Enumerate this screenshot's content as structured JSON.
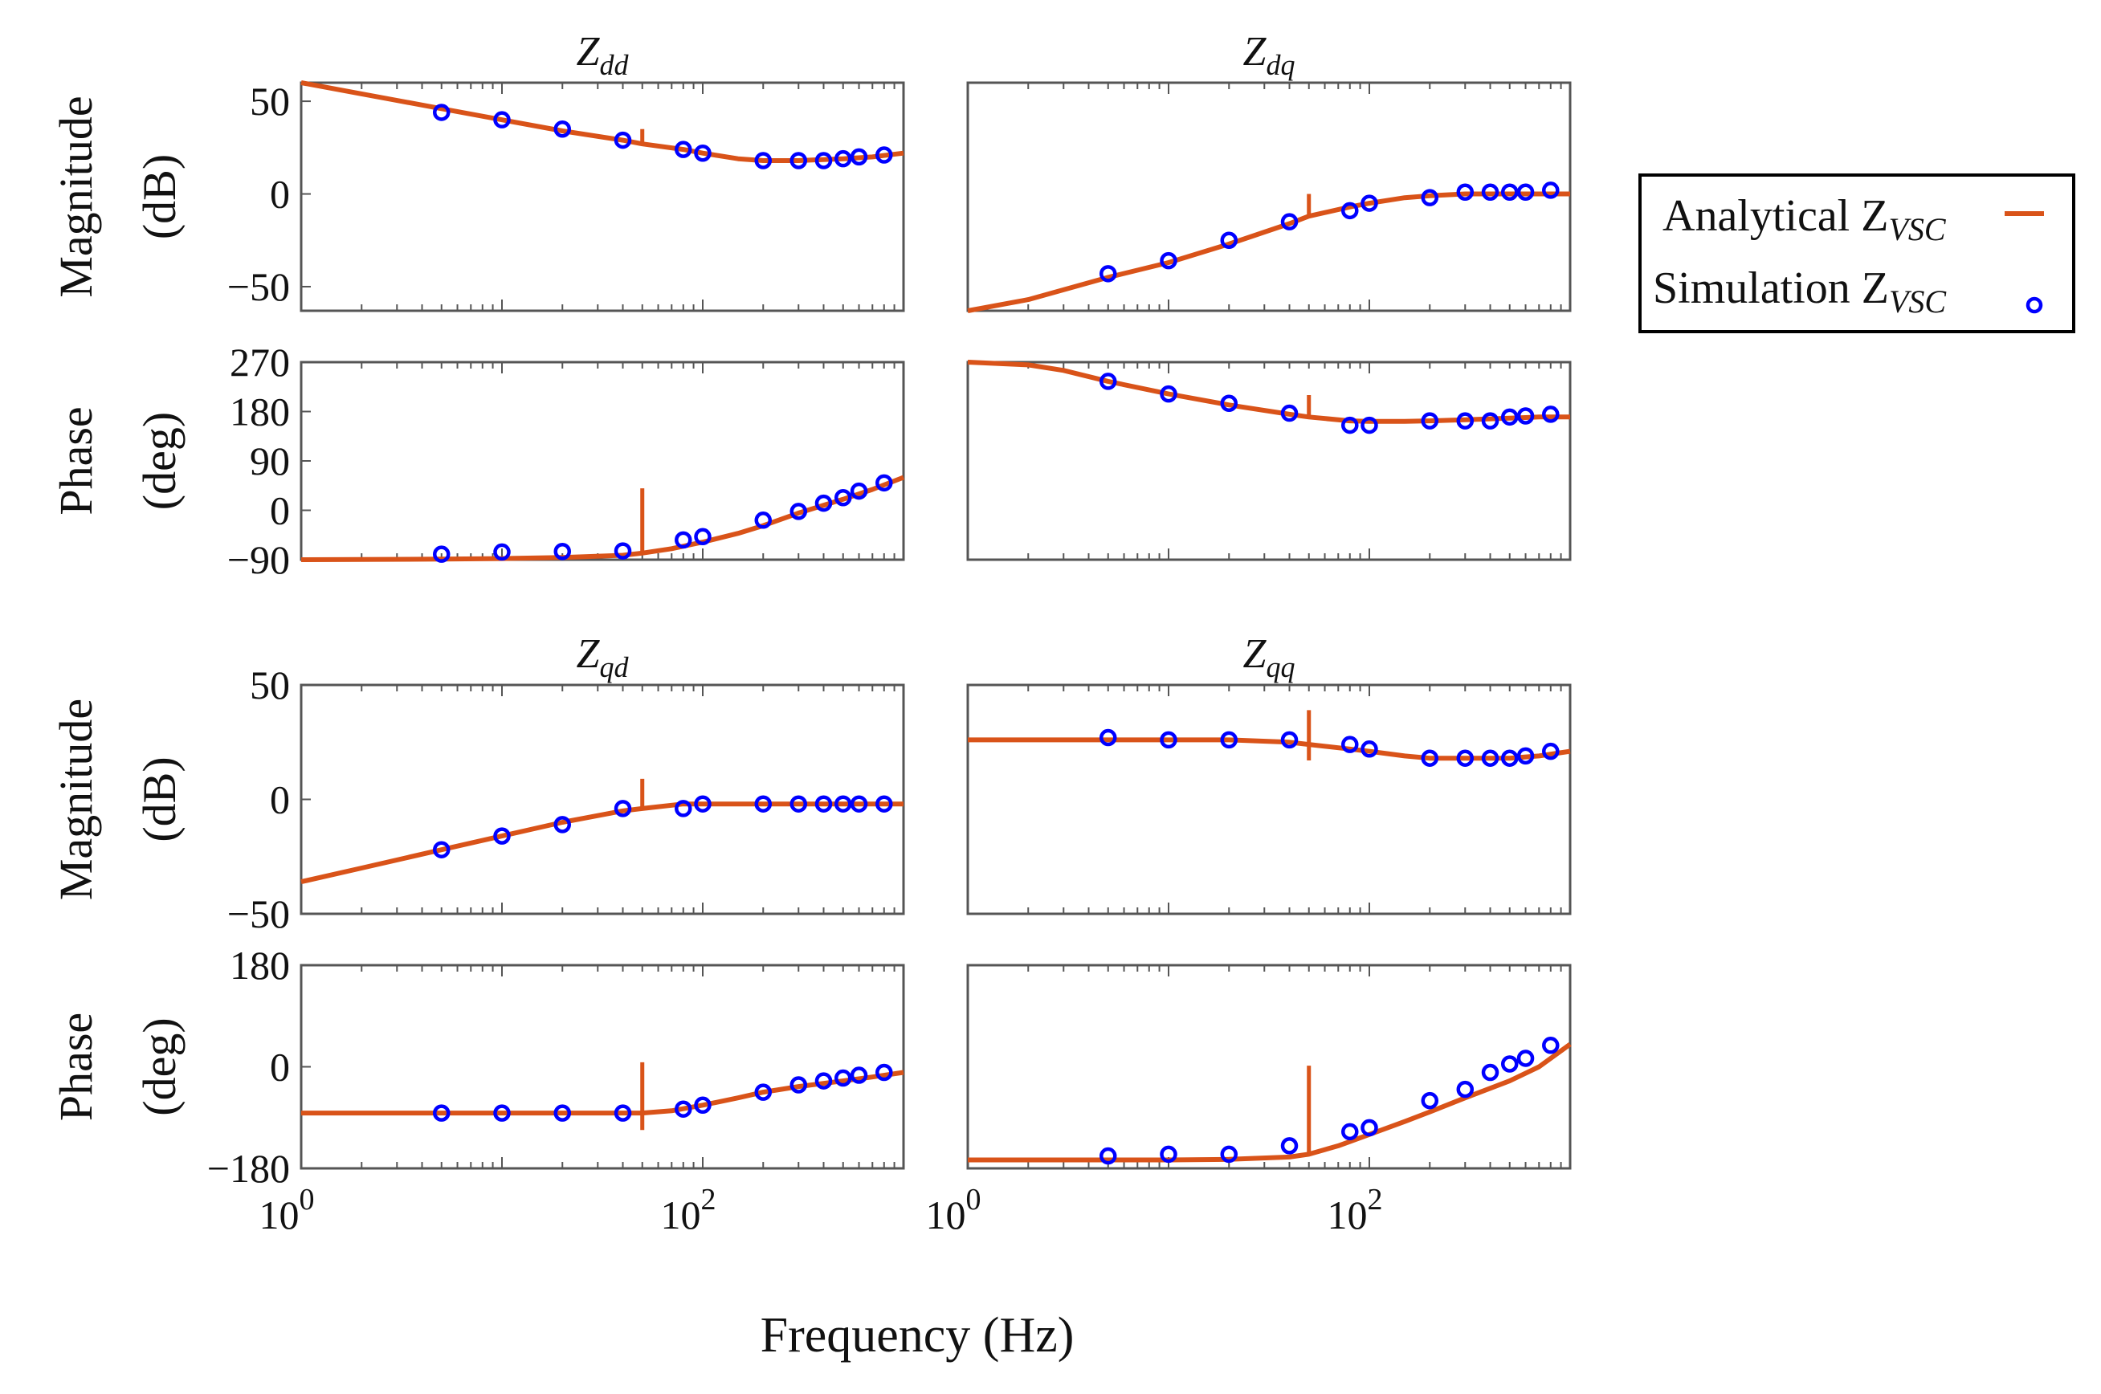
{
  "chart_data": {
    "type": "line",
    "layout": "4x2 bode grid",
    "xscale": "log",
    "xlim": [
      1,
      1000
    ],
    "xlabel": "Frequency  (Hz)",
    "colors": {
      "analytical": "#d95319",
      "simulation": "#0000ff",
      "frame": "#555555"
    },
    "legend": {
      "position": "right",
      "entries": [
        {
          "name": "Analytical Z",
          "sub": "VSC",
          "style": "line"
        },
        {
          "name": "Simulation Z",
          "sub": "VSC",
          "style": "marker"
        }
      ]
    },
    "row_labels": [
      {
        "line1": "Magnitude",
        "line2": "(dB)"
      },
      {
        "line1": "Phase",
        "line2": "(deg)"
      }
    ],
    "sim_freqs": [
      5,
      10,
      20,
      40,
      80,
      100,
      200,
      300,
      400,
      500,
      600,
      800
    ],
    "panels": [
      {
        "id": "zdd-mag",
        "group": "top",
        "col": 0,
        "kind": "magnitude",
        "title": "Z",
        "title_sub": "dd",
        "ylim": [
          -63,
          60
        ],
        "yticks": [
          {
            "v": 50,
            "label": "50"
          },
          {
            "v": 0,
            "label": "0"
          },
          {
            "v": -50,
            "label": "−50"
          }
        ],
        "analytical": {
          "x": [
            1,
            2,
            5,
            10,
            20,
            40,
            50,
            80,
            100,
            150,
            200,
            300,
            500,
            700,
            1000
          ],
          "y": [
            60,
            54,
            46,
            40,
            34,
            29,
            27,
            24,
            22,
            19,
            18,
            18,
            19,
            20,
            22
          ]
        },
        "spike": {
          "x": 50,
          "y1": 27,
          "y2": 35
        },
        "simulation": [
          44,
          40,
          35,
          29,
          24,
          22,
          18,
          18,
          18,
          19,
          20,
          21
        ]
      },
      {
        "id": "zdd-phase",
        "group": "top",
        "col": 0,
        "kind": "phase",
        "ylim": [
          -90,
          270
        ],
        "yticks": [
          {
            "v": 270,
            "label": "270"
          },
          {
            "v": 180,
            "label": "180"
          },
          {
            "v": 90,
            "label": "90"
          },
          {
            "v": 0,
            "label": "0"
          },
          {
            "v": -90,
            "label": "−90"
          }
        ],
        "analytical": {
          "x": [
            1,
            5,
            10,
            20,
            40,
            50,
            70,
            100,
            150,
            200,
            300,
            500,
            700,
            1000
          ],
          "y": [
            -90,
            -89,
            -88,
            -86,
            -82,
            -78,
            -70,
            -58,
            -42,
            -28,
            -5,
            20,
            38,
            60
          ]
        },
        "spike": {
          "x": 50,
          "y1": -78,
          "y2": 40
        },
        "simulation": [
          -80,
          -76,
          -75,
          -74,
          -54,
          -48,
          -18,
          -2,
          13,
          23,
          35,
          50
        ]
      },
      {
        "id": "zdq-mag",
        "group": "top",
        "col": 1,
        "kind": "magnitude",
        "title": "Z",
        "title_sub": "dq",
        "ylim": [
          -63,
          60
        ],
        "yticks": [],
        "analytical": {
          "x": [
            1,
            2,
            5,
            10,
            20,
            40,
            50,
            80,
            100,
            150,
            200,
            300,
            500,
            700,
            1000
          ],
          "y": [
            -63,
            -57,
            -45,
            -37,
            -27,
            -16,
            -12,
            -7,
            -5,
            -2,
            -1,
            0,
            0,
            0,
            0
          ]
        },
        "spike": {
          "x": 50,
          "y1": -12,
          "y2": 0
        },
        "simulation": [
          -43,
          -36,
          -25,
          -15,
          -9,
          -5,
          -2,
          1,
          1,
          1,
          1,
          2
        ]
      },
      {
        "id": "zdq-phase",
        "group": "top",
        "col": 1,
        "kind": "phase",
        "ylim": [
          -90,
          270
        ],
        "yticks": [],
        "analytical": {
          "x": [
            1,
            2,
            3,
            5,
            10,
            20,
            40,
            50,
            80,
            100,
            150,
            200,
            300,
            500,
            700,
            1000
          ],
          "y": [
            270,
            265,
            255,
            235,
            212,
            192,
            175,
            170,
            163,
            162,
            162,
            163,
            165,
            168,
            170,
            170
          ]
        },
        "spike": {
          "x": 50,
          "y1": 170,
          "y2": 210
        },
        "simulation": [
          235,
          212,
          195,
          177,
          155,
          155,
          163,
          163,
          163,
          170,
          172,
          175
        ]
      },
      {
        "id": "zqd-mag",
        "group": "bottom",
        "col": 0,
        "kind": "magnitude",
        "title": "Z",
        "title_sub": "qd",
        "ylim": [
          -50,
          50
        ],
        "yticks": [
          {
            "v": 50,
            "label": "50"
          },
          {
            "v": 0,
            "label": "0"
          },
          {
            "v": -50,
            "label": "−50"
          }
        ],
        "analytical": {
          "x": [
            1,
            2,
            5,
            10,
            20,
            40,
            50,
            80,
            100,
            150,
            200,
            300,
            500,
            1000
          ],
          "y": [
            -36,
            -30,
            -22,
            -16,
            -10,
            -5,
            -4,
            -2,
            -2,
            -2,
            -2,
            -2,
            -2,
            -2
          ]
        },
        "spike": {
          "x": 50,
          "y1": -4,
          "y2": 9
        },
        "simulation": [
          -22,
          -16,
          -11,
          -4,
          -4,
          -2,
          -2,
          -2,
          -2,
          -2,
          -2,
          -2
        ]
      },
      {
        "id": "zqd-phase",
        "group": "bottom",
        "col": 0,
        "kind": "phase",
        "ylim": [
          -180,
          180
        ],
        "yticks": [
          {
            "v": 180,
            "label": "180"
          },
          {
            "v": 0,
            "label": "0"
          },
          {
            "v": -180,
            "label": "−180"
          }
        ],
        "analytical": {
          "x": [
            1,
            5,
            10,
            20,
            40,
            50,
            70,
            100,
            150,
            200,
            300,
            500,
            700,
            1000
          ],
          "y": [
            -82,
            -82,
            -82,
            -82,
            -82,
            -82,
            -78,
            -68,
            -55,
            -45,
            -35,
            -25,
            -18,
            -10
          ]
        },
        "spike": {
          "x": 50,
          "y1": -112,
          "y2": 8
        },
        "simulation": [
          -82,
          -82,
          -82,
          -82,
          -75,
          -68,
          -45,
          -32,
          -25,
          -20,
          -15,
          -10
        ]
      },
      {
        "id": "zqq-mag",
        "group": "bottom",
        "col": 1,
        "kind": "magnitude",
        "title": "Z",
        "title_sub": "qq",
        "ylim": [
          -50,
          50
        ],
        "yticks": [],
        "analytical": {
          "x": [
            1,
            5,
            10,
            20,
            40,
            50,
            80,
            100,
            150,
            200,
            300,
            500,
            700,
            1000
          ],
          "y": [
            26,
            26,
            26,
            26,
            25,
            24,
            22,
            21,
            19,
            18,
            18,
            18,
            19,
            21
          ]
        },
        "spike": {
          "x": 50,
          "y1": 17,
          "y2": 39
        },
        "simulation": [
          27,
          26,
          26,
          26,
          24,
          22,
          18,
          18,
          18,
          18,
          19,
          21
        ]
      },
      {
        "id": "zqq-phase",
        "group": "bottom",
        "col": 1,
        "kind": "phase",
        "ylim": [
          -180,
          180
        ],
        "yticks": [],
        "analytical": {
          "x": [
            1,
            5,
            10,
            20,
            40,
            50,
            70,
            100,
            150,
            200,
            300,
            500,
            700,
            1000
          ],
          "y": [
            -165,
            -165,
            -165,
            -164,
            -160,
            -155,
            -140,
            -120,
            -97,
            -80,
            -55,
            -25,
            0,
            40
          ]
        },
        "spike": {
          "x": 50,
          "y1": -155,
          "y2": 2
        },
        "simulation": [
          -158,
          -155,
          -155,
          -140,
          -115,
          -108,
          -60,
          -40,
          -10,
          5,
          15,
          38
        ]
      }
    ],
    "xticks": [
      {
        "base": "10",
        "exp": "0",
        "v": 1
      },
      {
        "base": "10",
        "exp": "2",
        "v": 100
      }
    ]
  }
}
